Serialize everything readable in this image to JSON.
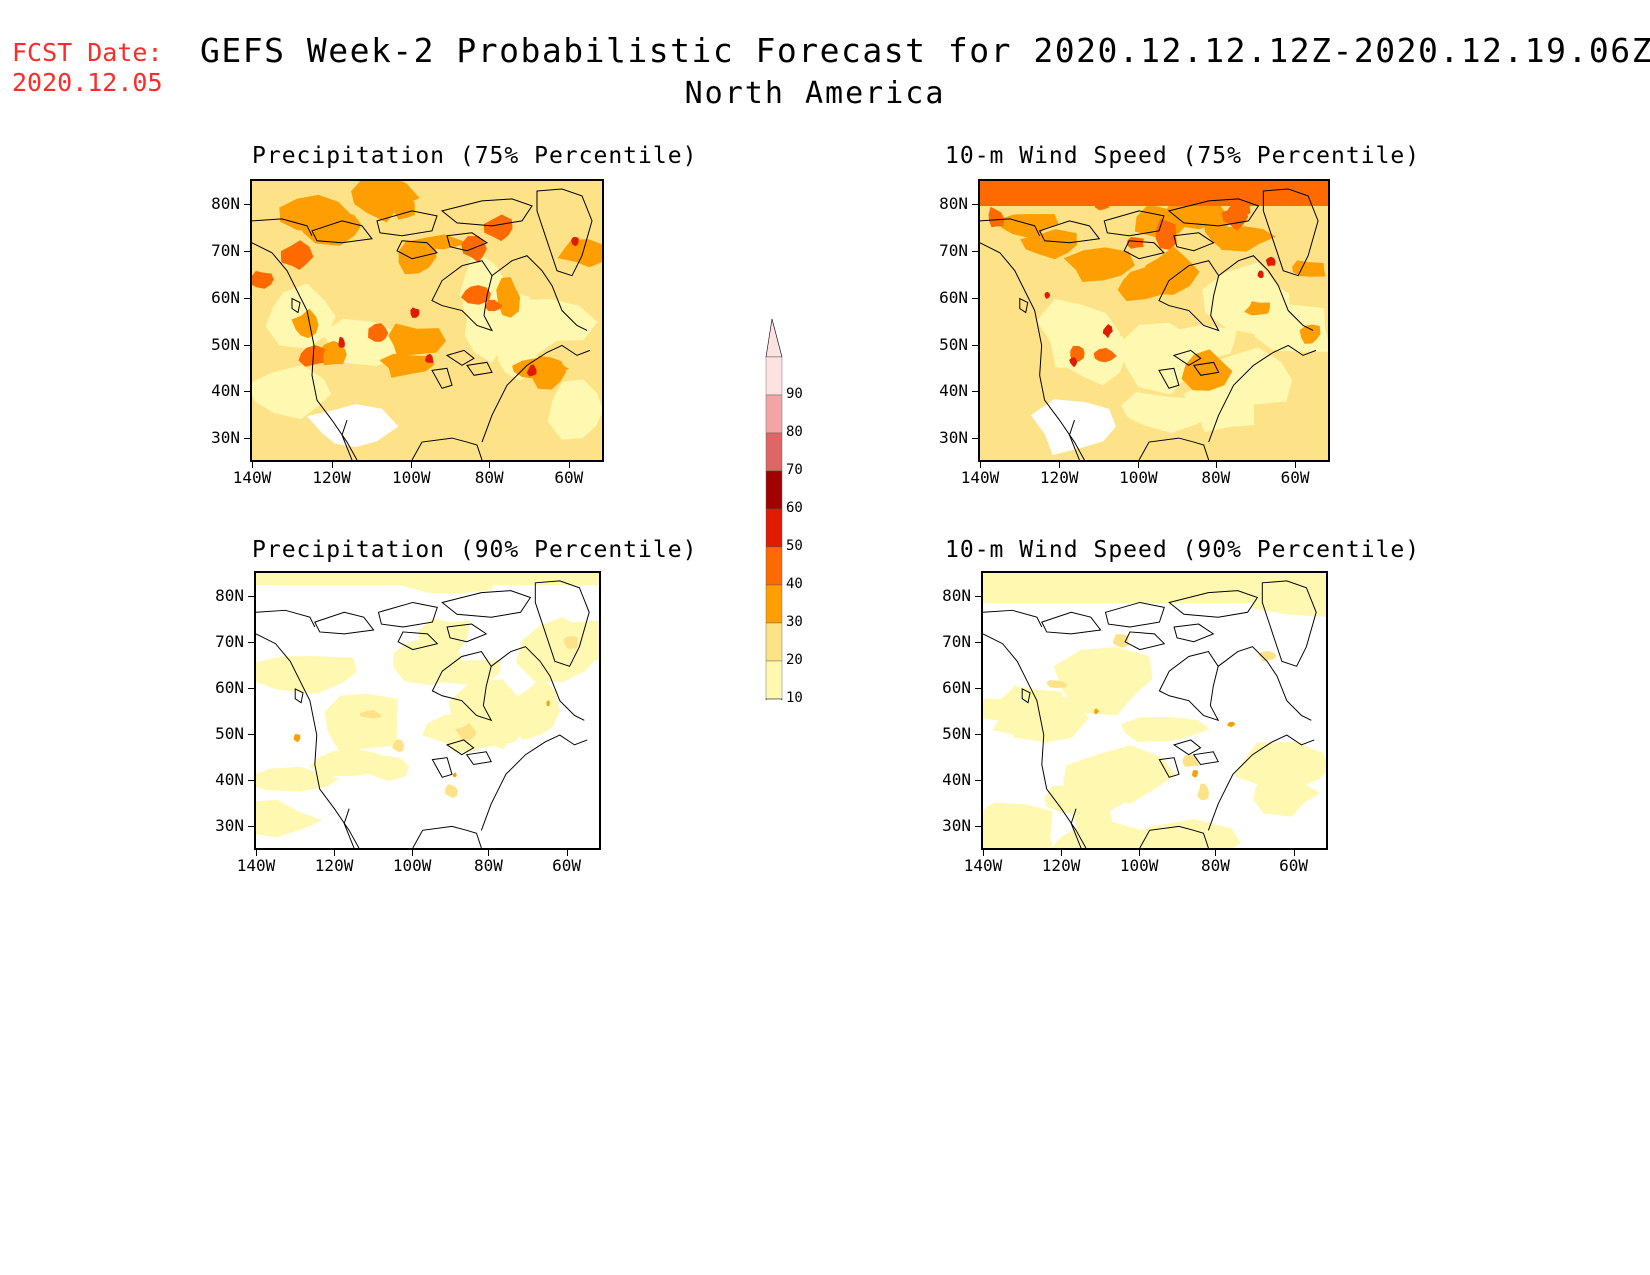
{
  "header": {
    "fcst_label": "FCST Date:",
    "fcst_date": "2020.12.05",
    "title": "GEFS Week-2 Probabilistic Forecast for 2020.12.12.12Z-2020.12.19.06Z",
    "region": "North America"
  },
  "panels": [
    {
      "id": "precip75",
      "title": "Precipitation (75% Percentile)",
      "level": "high"
    },
    {
      "id": "wind75",
      "title": "10-m Wind Speed (75% Percentile)",
      "level": "high"
    },
    {
      "id": "precip90",
      "title": "Precipitation (90% Percentile)",
      "level": "low"
    },
    {
      "id": "wind90",
      "title": "10-m Wind Speed (90% Percentile)",
      "level": "low"
    }
  ],
  "axes": {
    "lat_labels": [
      "80N",
      "70N",
      "60N",
      "50N",
      "40N",
      "30N"
    ],
    "lon_labels": [
      "140W",
      "120W",
      "100W",
      "80W",
      "60W"
    ]
  },
  "colorbar": {
    "levels": [
      "90",
      "80",
      "70",
      "60",
      "50",
      "40",
      "30",
      "20",
      "10"
    ],
    "colors": [
      "#fde2e2",
      "#f4a4a4",
      "#e06666",
      "#a30000",
      "#e01b00",
      "#ff6a00",
      "#ff9e00",
      "#fde287",
      "#fff8b0"
    ]
  }
}
